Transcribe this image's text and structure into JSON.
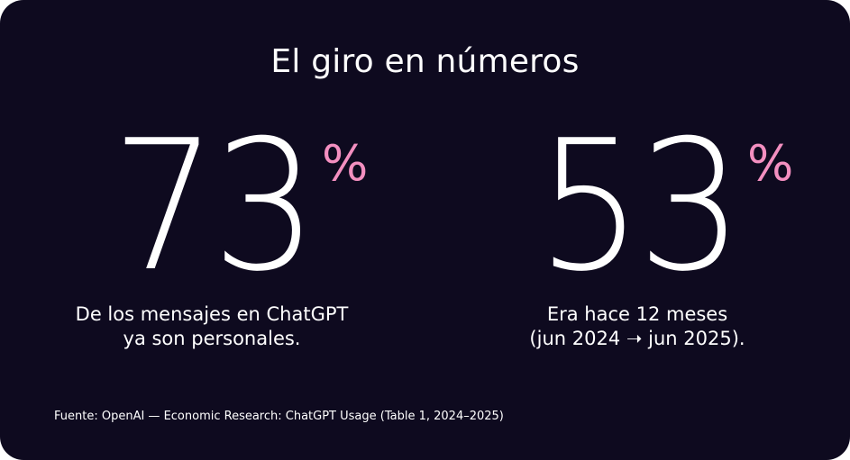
{
  "title": "El giro en números",
  "stats": [
    {
      "value": "73",
      "unit": "%",
      "caption_line1": "De los mensajes en ChatGPT",
      "caption_line2": "ya son personales."
    },
    {
      "value": "53",
      "unit": "%",
      "caption_line1": "Era hace 12 meses",
      "caption_line2": "(jun 2024 ➝ jun 2025)."
    }
  ],
  "source": "Fuente: OpenAI — Economic Research: ChatGPT Usage (Table 1, 2024–2025)",
  "colors": {
    "background": "#0e0a1f",
    "text": "#ffffff",
    "accent": "#f38fc0"
  }
}
